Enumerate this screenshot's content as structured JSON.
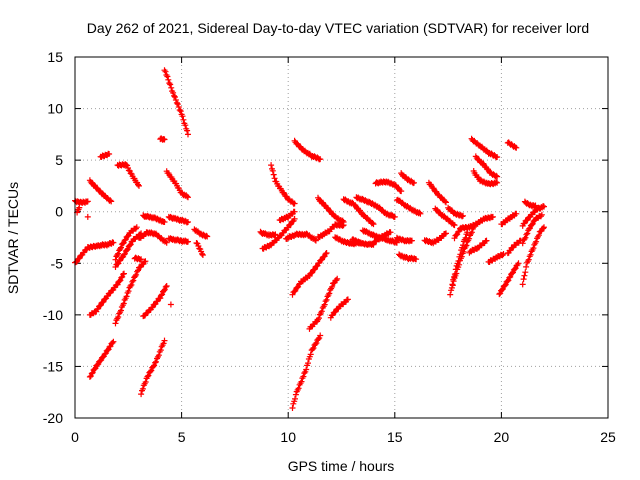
{
  "chart_data": {
    "type": "scatter",
    "title": "Day 262 of 2021, Sidereal Day-to-day VTEC variation (SDTVAR) for receiver lord",
    "xlabel": "GPS time / hours",
    "ylabel": "SDTVAR / TECUs",
    "xlim": [
      0,
      25
    ],
    "ylim": [
      -20,
      15
    ],
    "xticks": [
      0,
      5,
      10,
      15,
      20,
      25
    ],
    "yticks": [
      -20,
      -15,
      -10,
      -5,
      0,
      5,
      10,
      15
    ],
    "xtick_labels": [
      "0",
      "5",
      "10",
      "15",
      "20",
      "25"
    ],
    "ytick_labels": [
      "-20",
      "-15",
      "-10",
      "-5",
      "0",
      "5",
      "10",
      "15"
    ],
    "grid": true,
    "marker": "plus",
    "color": "#ff0000",
    "tracks": [
      [
        [
          4.2,
          13.8
        ],
        [
          4.6,
          11.5
        ],
        [
          5.0,
          9.5
        ],
        [
          5.3,
          7.5
        ]
      ],
      [
        [
          0.0,
          1.0
        ],
        [
          0.3,
          0.9
        ],
        [
          0.6,
          1.0
        ]
      ],
      [
        [
          0.0,
          -5.0
        ],
        [
          0.3,
          -4.2
        ],
        [
          0.6,
          -3.5
        ],
        [
          1.0,
          -3.3
        ],
        [
          1.5,
          -3.2
        ],
        [
          1.8,
          -3.0
        ]
      ],
      [
        [
          0.7,
          3.0
        ],
        [
          1.0,
          2.3
        ],
        [
          1.4,
          1.5
        ],
        [
          1.7,
          1.0
        ]
      ],
      [
        [
          1.2,
          5.3
        ],
        [
          1.6,
          5.6
        ]
      ],
      [
        [
          2.0,
          4.5
        ],
        [
          2.4,
          4.6
        ],
        [
          2.7,
          3.4
        ],
        [
          3.0,
          2.5
        ]
      ],
      [
        [
          0.7,
          -10.0
        ],
        [
          1.0,
          -9.6
        ],
        [
          1.5,
          -8.2
        ],
        [
          2.0,
          -7.0
        ],
        [
          2.3,
          -6.0
        ]
      ],
      [
        [
          0.7,
          -16.0
        ],
        [
          1.0,
          -15.0
        ],
        [
          1.4,
          -13.8
        ],
        [
          1.8,
          -12.6
        ]
      ],
      [
        [
          1.9,
          -10.8
        ],
        [
          2.2,
          -9.3
        ],
        [
          2.6,
          -7.2
        ],
        [
          3.0,
          -5.5
        ],
        [
          3.3,
          -4.8
        ]
      ],
      [
        [
          1.9,
          -4.6
        ],
        [
          2.2,
          -3.2
        ],
        [
          2.6,
          -2.0
        ],
        [
          2.9,
          -1.5
        ]
      ],
      [
        [
          1.9,
          -5.3
        ],
        [
          2.3,
          -4.2
        ],
        [
          2.7,
          -2.8
        ],
        [
          3.1,
          -2.1
        ]
      ],
      [
        [
          3.1,
          -17.6
        ],
        [
          3.4,
          -16.0
        ],
        [
          3.8,
          -14.5
        ],
        [
          4.2,
          -12.5
        ]
      ],
      [
        [
          3.2,
          -10.2
        ],
        [
          3.6,
          -9.3
        ],
        [
          4.0,
          -8.3
        ],
        [
          4.3,
          -7.2
        ]
      ],
      [
        [
          3.0,
          -2.6
        ],
        [
          3.4,
          -2.0
        ],
        [
          3.8,
          -2.2
        ],
        [
          4.3,
          -3.0
        ]
      ],
      [
        [
          3.2,
          -0.4
        ],
        [
          3.7,
          -0.6
        ],
        [
          4.2,
          -1.0
        ]
      ],
      [
        [
          4.3,
          3.9
        ],
        [
          4.7,
          2.8
        ],
        [
          5.0,
          1.8
        ],
        [
          5.3,
          1.4
        ]
      ],
      [
        [
          4.4,
          -2.6
        ],
        [
          4.9,
          -2.8
        ],
        [
          5.3,
          -2.9
        ]
      ],
      [
        [
          4.4,
          -0.5
        ],
        [
          4.9,
          -0.8
        ],
        [
          5.3,
          -1.0
        ]
      ],
      [
        [
          5.6,
          -1.7
        ],
        [
          5.9,
          -2.2
        ],
        [
          6.2,
          -2.4
        ]
      ],
      [
        [
          5.7,
          -3.0
        ],
        [
          6.0,
          -4.2
        ]
      ],
      [
        [
          2.8,
          -4.5
        ],
        [
          3.1,
          -4.6
        ]
      ],
      [
        [
          4.0,
          7.1
        ],
        [
          4.2,
          7.0
        ]
      ],
      [
        [
          0.1,
          0.0
        ],
        [
          0.2,
          0.4
        ]
      ],
      [
        [
          4.5,
          -9.0
        ]
      ],
      [
        [
          0.6,
          -0.5
        ]
      ],
      [
        [
          8.7,
          -2.0
        ],
        [
          9.1,
          -2.3
        ],
        [
          9.4,
          -2.2
        ]
      ],
      [
        [
          8.8,
          -3.6
        ],
        [
          9.2,
          -3.2
        ],
        [
          9.6,
          -2.4
        ],
        [
          10.0,
          -1.5
        ],
        [
          10.3,
          -0.7
        ]
      ],
      [
        [
          9.2,
          4.5
        ],
        [
          9.4,
          3.0
        ],
        [
          9.7,
          2.0
        ],
        [
          10.0,
          1.2
        ],
        [
          10.3,
          0.8
        ]
      ],
      [
        [
          9.6,
          -0.8
        ],
        [
          10.0,
          -0.5
        ],
        [
          10.3,
          0.0
        ]
      ],
      [
        [
          9.9,
          -2.6
        ],
        [
          10.4,
          -2.2
        ],
        [
          10.9,
          -2.2
        ],
        [
          11.3,
          -2.8
        ]
      ],
      [
        [
          10.2,
          -19.0
        ],
        [
          10.4,
          -17.5
        ],
        [
          10.8,
          -15.5
        ],
        [
          11.1,
          -13.5
        ],
        [
          11.5,
          -12.0
        ]
      ],
      [
        [
          10.2,
          -8.0
        ],
        [
          10.6,
          -6.8
        ],
        [
          11.0,
          -6.2
        ],
        [
          11.5,
          -4.8
        ],
        [
          11.8,
          -4.0
        ]
      ],
      [
        [
          11.0,
          -11.3
        ],
        [
          11.4,
          -10.5
        ],
        [
          11.8,
          -8.5
        ],
        [
          12.1,
          -7.0
        ],
        [
          12.3,
          -6.5
        ]
      ],
      [
        [
          12.0,
          -10.2
        ],
        [
          12.4,
          -9.2
        ],
        [
          12.8,
          -8.5
        ]
      ],
      [
        [
          10.3,
          6.8
        ],
        [
          10.7,
          6.0
        ],
        [
          11.1,
          5.4
        ],
        [
          11.5,
          5.1
        ]
      ],
      [
        [
          11.4,
          -2.5
        ],
        [
          11.9,
          -1.9
        ],
        [
          12.2,
          -1.3
        ],
        [
          12.6,
          -1.3
        ]
      ],
      [
        [
          11.4,
          1.3
        ],
        [
          11.8,
          0.4
        ],
        [
          12.2,
          -0.5
        ],
        [
          12.6,
          -1.0
        ]
      ],
      [
        [
          12.2,
          -2.5
        ],
        [
          12.6,
          -2.9
        ],
        [
          13.0,
          -3.1
        ],
        [
          13.4,
          -3.0
        ]
      ],
      [
        [
          12.6,
          1.2
        ],
        [
          13.1,
          0.7
        ],
        [
          13.5,
          -0.3
        ],
        [
          14.0,
          -1.2
        ]
      ],
      [
        [
          13.2,
          1.4
        ],
        [
          13.7,
          1.0
        ],
        [
          14.2,
          0.5
        ],
        [
          14.6,
          -0.2
        ],
        [
          15.0,
          -0.5
        ]
      ],
      [
        [
          13.5,
          -1.8
        ],
        [
          14.0,
          -2.3
        ],
        [
          14.6,
          -2.7
        ],
        [
          15.1,
          -3.0
        ]
      ],
      [
        [
          13.0,
          -2.7
        ],
        [
          13.5,
          -3.1
        ],
        [
          14.0,
          -3.2
        ]
      ],
      [
        [
          14.0,
          -3.0
        ],
        [
          14.4,
          -2.4
        ],
        [
          14.8,
          -2.0
        ]
      ],
      [
        [
          14.1,
          2.8
        ],
        [
          14.6,
          2.9
        ],
        [
          15.0,
          2.6
        ],
        [
          15.3,
          2.0
        ]
      ],
      [
        [
          15.1,
          1.2
        ],
        [
          15.5,
          0.6
        ],
        [
          15.9,
          0.1
        ],
        [
          16.2,
          -0.2
        ]
      ],
      [
        [
          15.1,
          -2.6
        ],
        [
          15.5,
          -2.8
        ],
        [
          15.8,
          -2.8
        ]
      ],
      [
        [
          15.2,
          -4.2
        ],
        [
          15.6,
          -4.5
        ],
        [
          16.0,
          -4.6
        ]
      ],
      [
        [
          15.3,
          3.7
        ],
        [
          15.6,
          3.1
        ],
        [
          15.9,
          2.8
        ]
      ],
      [
        [
          16.4,
          -2.8
        ],
        [
          16.8,
          -3.0
        ],
        [
          17.1,
          -2.6
        ],
        [
          17.4,
          -2.1
        ]
      ],
      [
        [
          16.6,
          2.8
        ],
        [
          16.9,
          2.0
        ],
        [
          17.1,
          1.5
        ],
        [
          17.4,
          0.9
        ]
      ],
      [
        [
          16.9,
          0.3
        ],
        [
          17.2,
          -0.3
        ],
        [
          17.5,
          -0.8
        ],
        [
          17.8,
          -1.3
        ]
      ],
      [
        [
          17.5,
          0.4
        ],
        [
          17.8,
          -0.2
        ],
        [
          18.2,
          -0.4
        ]
      ],
      [
        [
          17.6,
          -8.0
        ],
        [
          17.8,
          -6.5
        ],
        [
          18.1,
          -4.5
        ],
        [
          18.4,
          -3.0
        ],
        [
          18.7,
          -1.5
        ]
      ],
      [
        [
          17.7,
          -7.0
        ],
        [
          17.9,
          -5.3
        ],
        [
          18.2,
          -3.2
        ],
        [
          18.4,
          -2.0
        ]
      ],
      [
        [
          17.8,
          -2.5
        ],
        [
          18.1,
          -1.6
        ],
        [
          18.5,
          -1.5
        ],
        [
          18.8,
          -1.2
        ],
        [
          19.2,
          -0.7
        ],
        [
          19.6,
          -0.5
        ]
      ],
      [
        [
          18.5,
          -3.9
        ],
        [
          18.9,
          -3.5
        ],
        [
          19.3,
          -2.8
        ]
      ],
      [
        [
          18.6,
          7.0
        ],
        [
          19.0,
          6.4
        ],
        [
          19.4,
          5.7
        ],
        [
          19.8,
          5.3
        ]
      ],
      [
        [
          18.8,
          5.3
        ],
        [
          19.2,
          4.5
        ],
        [
          19.5,
          3.7
        ],
        [
          19.8,
          3.4
        ]
      ],
      [
        [
          18.7,
          3.9
        ],
        [
          19.0,
          3.0
        ],
        [
          19.4,
          2.7
        ],
        [
          19.8,
          2.8
        ]
      ],
      [
        [
          19.4,
          -4.9
        ],
        [
          19.8,
          -4.4
        ],
        [
          20.1,
          -4.1
        ]
      ],
      [
        [
          19.9,
          -8.0
        ],
        [
          20.2,
          -7.0
        ],
        [
          20.5,
          -6.0
        ],
        [
          20.8,
          -5.0
        ]
      ],
      [
        [
          20.0,
          -1.2
        ],
        [
          20.4,
          -0.6
        ],
        [
          20.7,
          -0.2
        ]
      ],
      [
        [
          20.3,
          -4.0
        ],
        [
          20.6,
          -3.3
        ],
        [
          20.9,
          -2.8
        ]
      ],
      [
        [
          20.3,
          6.7
        ],
        [
          20.7,
          6.2
        ]
      ],
      [
        [
          21.0,
          -7.0
        ],
        [
          21.2,
          -5.0
        ],
        [
          21.5,
          -3.5
        ],
        [
          21.8,
          -2.0
        ],
        [
          22.0,
          -1.5
        ]
      ],
      [
        [
          21.0,
          -3.0
        ],
        [
          21.3,
          -1.7
        ],
        [
          21.6,
          -0.7
        ],
        [
          21.9,
          -0.3
        ]
      ],
      [
        [
          21.0,
          -1.3
        ],
        [
          21.4,
          -0.3
        ],
        [
          21.7,
          0.3
        ],
        [
          22.0,
          0.5
        ]
      ],
      [
        [
          21.1,
          0.9
        ],
        [
          21.4,
          0.6
        ],
        [
          21.6,
          0.6
        ]
      ]
    ]
  }
}
